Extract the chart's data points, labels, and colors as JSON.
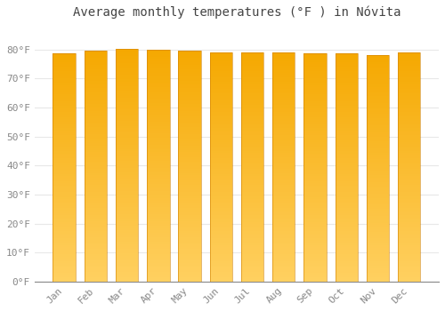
{
  "title": "Average monthly temperatures (°F ) in Nóvita",
  "months": [
    "Jan",
    "Feb",
    "Mar",
    "Apr",
    "May",
    "Jun",
    "Jul",
    "Aug",
    "Sep",
    "Oct",
    "Nov",
    "Dec"
  ],
  "values": [
    78.8,
    79.5,
    80.1,
    79.9,
    79.5,
    79.0,
    79.0,
    79.1,
    78.8,
    78.8,
    78.0,
    79.0
  ],
  "bar_color_top": "#F5A800",
  "bar_color_bottom": "#FFD060",
  "ylim": [
    0,
    88
  ],
  "yticks": [
    0,
    10,
    20,
    30,
    40,
    50,
    60,
    70,
    80
  ],
  "background_color": "#FFFFFF",
  "grid_color": "#E8E8E8",
  "title_fontsize": 10,
  "tick_fontsize": 8,
  "gradient_steps": 100
}
